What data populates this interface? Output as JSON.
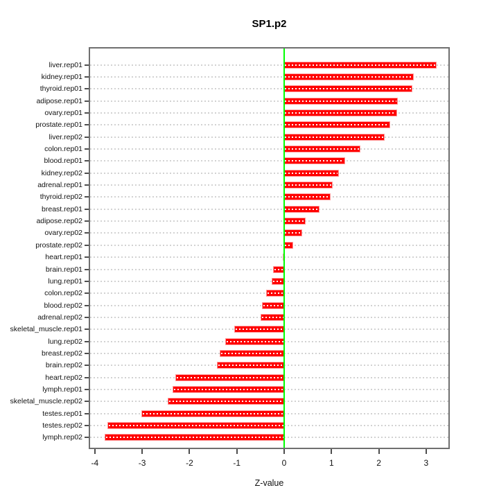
{
  "chart_data": {
    "type": "bar",
    "orientation": "horizontal",
    "title": "SP1.p2",
    "xlabel": "Z-value",
    "ylabel": "",
    "categories": [
      "liver.rep01",
      "kidney.rep01",
      "thyroid.rep01",
      "adipose.rep01",
      "ovary.rep01",
      "prostate.rep01",
      "liver.rep02",
      "colon.rep01",
      "blood.rep01",
      "kidney.rep02",
      "adrenal.rep01",
      "thyroid.rep02",
      "breast.rep01",
      "adipose.rep02",
      "ovary.rep02",
      "prostate.rep02",
      "heart.rep01",
      "brain.rep01",
      "lung.rep01",
      "colon.rep02",
      "blood.rep02",
      "adrenal.rep02",
      "skeletal_muscle.rep01",
      "lung.rep02",
      "breast.rep02",
      "brain.rep02",
      "heart.rep02",
      "lymph.rep01",
      "skeletal_muscle.rep02",
      "testes.rep01",
      "testes.rep02",
      "lymph.rep02"
    ],
    "values": [
      3.2,
      2.72,
      2.69,
      2.39,
      2.37,
      2.22,
      2.11,
      1.59,
      1.28,
      1.14,
      1.01,
      0.97,
      0.73,
      0.44,
      0.37,
      0.18,
      -0.02,
      -0.22,
      -0.25,
      -0.37,
      -0.45,
      -0.49,
      -1.04,
      -1.23,
      -1.35,
      -1.4,
      -2.29,
      -2.34,
      -2.45,
      -3.0,
      -3.72,
      -3.78
    ],
    "x_ticks": [
      -4,
      -3,
      -2,
      -1,
      0,
      1,
      2,
      3
    ],
    "xlim": [
      -4.1,
      3.47
    ],
    "grid": "dotted-horizontal-per-category",
    "legend": "none",
    "zero_reference_line": 0,
    "colors": {
      "bar": "#ff0000",
      "zero_line": "#00ff00",
      "grid_line": "#d2d2d2",
      "box": "#6f6f6f"
    }
  }
}
